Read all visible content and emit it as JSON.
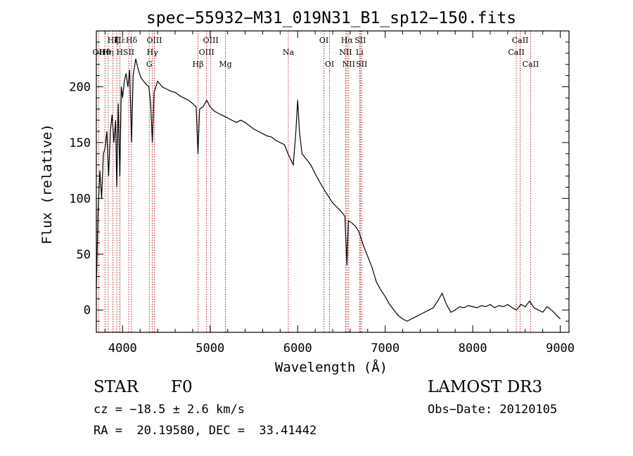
{
  "chart_data": {
    "type": "line",
    "title": "spec−55932−M31_019N31_B1_sp12−150.fits",
    "xlabel": "Wavelength (Å)",
    "ylabel": "Flux (relative)",
    "xlim": [
      3700,
      9100
    ],
    "ylim": [
      -20,
      250
    ],
    "xticks": [
      4000,
      5000,
      6000,
      7000,
      8000,
      9000
    ],
    "yticks": [
      0,
      50,
      100,
      150,
      200
    ],
    "grid": false,
    "series": [
      {
        "color": "#000000",
        "points": [
          [
            3700,
            20
          ],
          [
            3720,
            90
          ],
          [
            3740,
            125
          ],
          [
            3760,
            100
          ],
          [
            3780,
            140
          ],
          [
            3800,
            145
          ],
          [
            3820,
            160
          ],
          [
            3840,
            120
          ],
          [
            3860,
            160
          ],
          [
            3880,
            175
          ],
          [
            3900,
            150
          ],
          [
            3920,
            170
          ],
          [
            3933,
            110
          ],
          [
            3950,
            185
          ],
          [
            3968,
            120
          ],
          [
            3985,
            200
          ],
          [
            4000,
            190
          ],
          [
            4020,
            205
          ],
          [
            4040,
            212
          ],
          [
            4060,
            200
          ],
          [
            4080,
            215
          ],
          [
            4102,
            150
          ],
          [
            4120,
            210
          ],
          [
            4150,
            225
          ],
          [
            4180,
            215
          ],
          [
            4210,
            208
          ],
          [
            4240,
            205
          ],
          [
            4270,
            202
          ],
          [
            4300,
            200
          ],
          [
            4320,
            185
          ],
          [
            4340,
            150
          ],
          [
            4360,
            195
          ],
          [
            4400,
            205
          ],
          [
            4450,
            200
          ],
          [
            4500,
            198
          ],
          [
            4550,
            196
          ],
          [
            4600,
            195
          ],
          [
            4650,
            192
          ],
          [
            4700,
            190
          ],
          [
            4750,
            188
          ],
          [
            4800,
            185
          ],
          [
            4840,
            182
          ],
          [
            4861,
            140
          ],
          [
            4880,
            180
          ],
          [
            4920,
            182
          ],
          [
            4960,
            188
          ],
          [
            5000,
            182
          ],
          [
            5050,
            178
          ],
          [
            5100,
            176
          ],
          [
            5150,
            174
          ],
          [
            5200,
            172
          ],
          [
            5250,
            170
          ],
          [
            5300,
            168
          ],
          [
            5350,
            170
          ],
          [
            5400,
            168
          ],
          [
            5450,
            165
          ],
          [
            5500,
            162
          ],
          [
            5550,
            160
          ],
          [
            5600,
            158
          ],
          [
            5650,
            156
          ],
          [
            5700,
            155
          ],
          [
            5750,
            152
          ],
          [
            5800,
            150
          ],
          [
            5850,
            148
          ],
          [
            5890,
            140
          ],
          [
            5920,
            135
          ],
          [
            5950,
            130
          ],
          [
            5980,
            160
          ],
          [
            6000,
            188
          ],
          [
            6020,
            160
          ],
          [
            6050,
            140
          ],
          [
            6100,
            135
          ],
          [
            6150,
            130
          ],
          [
            6200,
            122
          ],
          [
            6250,
            115
          ],
          [
            6300,
            108
          ],
          [
            6350,
            102
          ],
          [
            6400,
            96
          ],
          [
            6450,
            92
          ],
          [
            6500,
            88
          ],
          [
            6540,
            84
          ],
          [
            6563,
            40
          ],
          [
            6580,
            80
          ],
          [
            6620,
            78
          ],
          [
            6660,
            75
          ],
          [
            6700,
            70
          ],
          [
            6750,
            58
          ],
          [
            6800,
            48
          ],
          [
            6850,
            38
          ],
          [
            6900,
            25
          ],
          [
            6950,
            18
          ],
          [
            7000,
            12
          ],
          [
            7050,
            5
          ],
          [
            7100,
            0
          ],
          [
            7150,
            -5
          ],
          [
            7200,
            -8
          ],
          [
            7250,
            -10
          ],
          [
            7300,
            -8
          ],
          [
            7350,
            -6
          ],
          [
            7400,
            -4
          ],
          [
            7450,
            -2
          ],
          [
            7500,
            0
          ],
          [
            7550,
            2
          ],
          [
            7600,
            8
          ],
          [
            7650,
            15
          ],
          [
            7700,
            5
          ],
          [
            7750,
            -2
          ],
          [
            7800,
            0
          ],
          [
            7850,
            3
          ],
          [
            7900,
            2
          ],
          [
            7950,
            4
          ],
          [
            8000,
            3
          ],
          [
            8050,
            2
          ],
          [
            8100,
            4
          ],
          [
            8150,
            3
          ],
          [
            8200,
            5
          ],
          [
            8250,
            2
          ],
          [
            8300,
            4
          ],
          [
            8350,
            3
          ],
          [
            8400,
            5
          ],
          [
            8450,
            2
          ],
          [
            8500,
            0
          ],
          [
            8550,
            5
          ],
          [
            8600,
            3
          ],
          [
            8650,
            8
          ],
          [
            8700,
            2
          ],
          [
            8750,
            0
          ],
          [
            8800,
            -2
          ],
          [
            8850,
            3
          ],
          [
            8900,
            0
          ],
          [
            8950,
            -4
          ],
          [
            9000,
            -8
          ]
        ]
      }
    ],
    "lines": [
      {
        "label": "Hδ",
        "x": 4102,
        "row": 1
      },
      {
        "label": "Hε",
        "x": 3970,
        "row": 1
      },
      {
        "label": "K",
        "x": 3934,
        "row": 1
      },
      {
        "label": "Hζ",
        "x": 3889,
        "row": 1
      },
      {
        "label": "OII",
        "x": 3727,
        "row": 2
      },
      {
        "label": "Hη",
        "x": 3835,
        "row": 2
      },
      {
        "label": "Hθ",
        "x": 3798,
        "row": 2
      },
      {
        "label": "H",
        "x": 3968,
        "row": 2
      },
      {
        "label": "SII",
        "x": 4070,
        "row": 2
      },
      {
        "label": "OIII",
        "x": 4363,
        "row": 1
      },
      {
        "label": "Hγ",
        "x": 4340,
        "row": 2
      },
      {
        "label": "G",
        "x": 4305,
        "row": 3
      },
      {
        "label": "Hβ",
        "x": 4861,
        "row": 3
      },
      {
        "label": "OIII",
        "x": 4959,
        "row": 2
      },
      {
        "label": "OIII",
        "x": 5007,
        "row": 1
      },
      {
        "label": "Mg",
        "x": 5175,
        "row": 3
      },
      {
        "label": "Na",
        "x": 5893,
        "row": 2
      },
      {
        "label": "OI",
        "x": 6300,
        "row": 1
      },
      {
        "label": "OI",
        "x": 6364,
        "row": 3
      },
      {
        "label": "NII",
        "x": 6548,
        "row": 2
      },
      {
        "label": "Hα",
        "x": 6563,
        "row": 1
      },
      {
        "label": "NII",
        "x": 6583,
        "row": 3
      },
      {
        "label": "SII",
        "x": 6716,
        "row": 1
      },
      {
        "label": "Li",
        "x": 6708,
        "row": 2
      },
      {
        "label": "SII",
        "x": 6731,
        "row": 3
      },
      {
        "label": "CaII",
        "x": 8498,
        "row": 2
      },
      {
        "label": "CaII",
        "x": 8542,
        "row": 1
      },
      {
        "label": "CaII",
        "x": 8662,
        "row": 3
      }
    ]
  },
  "footer": {
    "class_label": "STAR",
    "subclass": "F0",
    "survey": "LAMOST DR3",
    "cz": "cz = −18.5 ± 2.6 km/s",
    "obs_date": "Obs−Date: 20120105",
    "coords": "RA =  20.19580, DEC =  33.41442"
  }
}
